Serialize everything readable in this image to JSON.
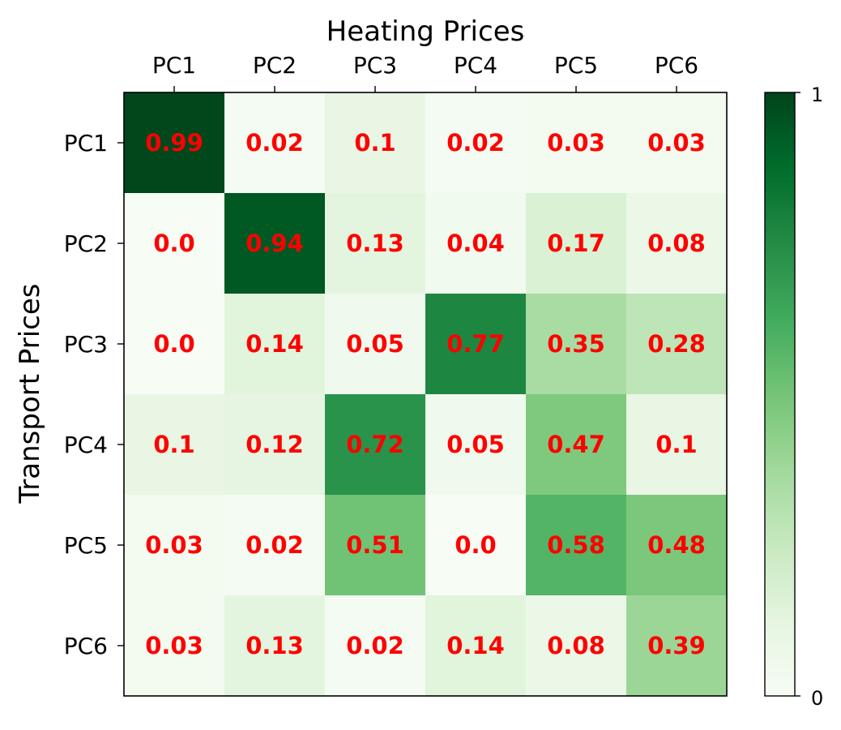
{
  "chart_data": {
    "type": "heatmap",
    "title": "Heating Prices",
    "xlabel": "Heating Prices",
    "ylabel": "Transport Prices",
    "x_categories": [
      "PC1",
      "PC2",
      "PC3",
      "PC4",
      "PC5",
      "PC6"
    ],
    "y_categories": [
      "PC1",
      "PC2",
      "PC3",
      "PC4",
      "PC5",
      "PC6"
    ],
    "values": [
      [
        0.99,
        0.02,
        0.1,
        0.02,
        0.03,
        0.03
      ],
      [
        0.0,
        0.94,
        0.13,
        0.04,
        0.17,
        0.08
      ],
      [
        0.0,
        0.14,
        0.05,
        0.77,
        0.35,
        0.28
      ],
      [
        0.1,
        0.12,
        0.72,
        0.05,
        0.47,
        0.1
      ],
      [
        0.03,
        0.02,
        0.51,
        0.0,
        0.58,
        0.48
      ],
      [
        0.03,
        0.13,
        0.02,
        0.14,
        0.08,
        0.39
      ]
    ],
    "value_labels": [
      [
        "0.99",
        "0.02",
        "0.1",
        "0.02",
        "0.03",
        "0.03"
      ],
      [
        "0.0",
        "0.94",
        "0.13",
        "0.04",
        "0.17",
        "0.08"
      ],
      [
        "0.0",
        "0.14",
        "0.05",
        "0.77",
        "0.35",
        "0.28"
      ],
      [
        "0.1",
        "0.12",
        "0.72",
        "0.05",
        "0.47",
        "0.1"
      ],
      [
        "0.03",
        "0.02",
        "0.51",
        "0.0",
        "0.58",
        "0.48"
      ],
      [
        "0.03",
        "0.13",
        "0.02",
        "0.14",
        "0.08",
        "0.39"
      ]
    ],
    "colormap": "Greens",
    "colorbar": {
      "min": 0,
      "max": 1,
      "tick_labels": [
        "0",
        "1"
      ]
    },
    "x_axis_position": "top",
    "label_color": "#ff0000",
    "grid": false
  }
}
